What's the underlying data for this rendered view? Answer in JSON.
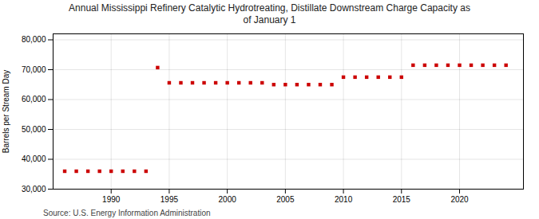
{
  "chart_data": {
    "type": "scatter",
    "title": "Annual Mississippi Refinery Catalytic Hydrotreating, Distillate Downstream Charge Capacity as\nof January 1",
    "ylabel": "Barrels per Stream Day",
    "source": "Source: U.S. Energy Information Administration",
    "x": [
      1986,
      1987,
      1988,
      1989,
      1990,
      1991,
      1992,
      1993,
      1994,
      1995,
      1996,
      1997,
      1998,
      1999,
      2000,
      2001,
      2002,
      2003,
      2004,
      2005,
      2006,
      2007,
      2008,
      2009,
      2010,
      2011,
      2012,
      2013,
      2014,
      2015,
      2016,
      2017,
      2018,
      2019,
      2020,
      2021,
      2022,
      2023,
      2024
    ],
    "values": [
      36000,
      36000,
      36000,
      36000,
      36000,
      36000,
      36000,
      36000,
      70700,
      65600,
      65600,
      65600,
      65600,
      65600,
      65600,
      65600,
      65600,
      65600,
      65000,
      65000,
      65000,
      65000,
      65000,
      65000,
      67500,
      67500,
      67500,
      67500,
      67500,
      67500,
      71500,
      71500,
      71500,
      71500,
      71500,
      71500,
      71500,
      71500,
      71500
    ],
    "color": "#cc0000",
    "marker": "square",
    "xlim": [
      1985.0,
      2025.5
    ],
    "xticks": [
      1990,
      1995,
      2000,
      2005,
      2010,
      2015,
      2020
    ],
    "ylim": [
      30000,
      82000
    ],
    "yticks": [
      {
        "value": 30000,
        "label": "30,000"
      },
      {
        "value": 40000,
        "label": "40,000"
      },
      {
        "value": 50000,
        "label": "50,000"
      },
      {
        "value": 60000,
        "label": "60,000"
      },
      {
        "value": 70000,
        "label": "70,000"
      },
      {
        "value": 80000,
        "label": "80,000"
      }
    ],
    "grid": true
  }
}
